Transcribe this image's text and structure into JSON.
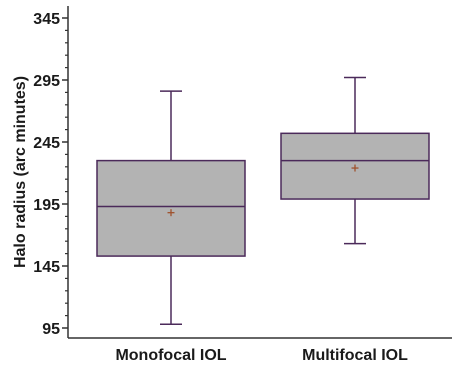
{
  "chart_data": {
    "type": "box",
    "title": "",
    "xlabel": "",
    "ylabel": "Halo radius (arc minutes)",
    "ylim": [
      86,
      350
    ],
    "yticks": [
      95,
      145,
      195,
      245,
      295,
      345
    ],
    "grid": false,
    "categories": [
      "Monofocal IOL",
      "Multifocal IOL"
    ],
    "boxes": [
      {
        "category": "Monofocal IOL",
        "min": 98,
        "q1": 153,
        "median": 193,
        "q3": 230,
        "max": 286,
        "mean": 188
      },
      {
        "category": "Multifocal IOL",
        "min": 163,
        "q1": 199,
        "median": 230,
        "q3": 252,
        "max": 297,
        "mean": 224
      }
    ],
    "colors": {
      "box_fill": "#b3b3b3",
      "box_stroke": "#4b2a5a",
      "whisker": "#4b2a5a",
      "mean_marker": "#a0522d",
      "axis": "#333333"
    }
  }
}
